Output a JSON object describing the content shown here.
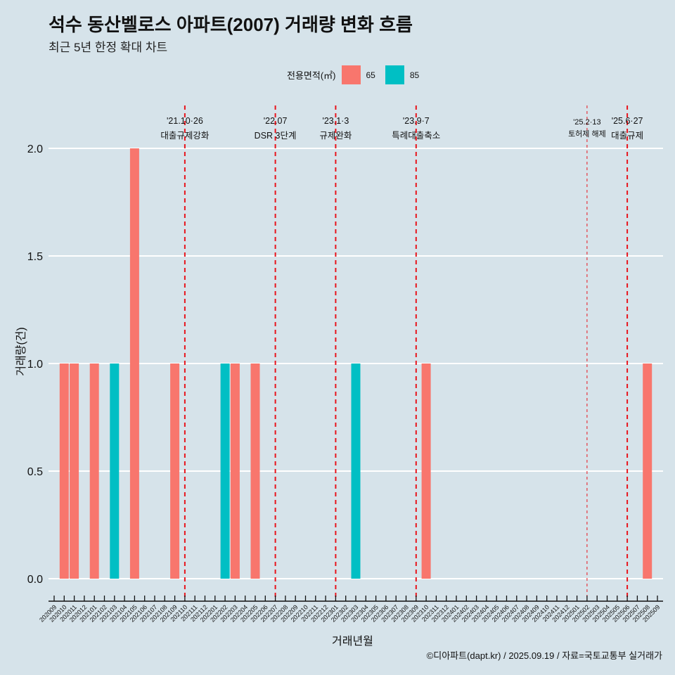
{
  "header": {
    "title": "석수 동산벨로스 아파트(2007) 거래량 변화 흐름",
    "subtitle": "최근 5년 한정 확대 차트"
  },
  "legend": {
    "title": "전용면적(㎡)",
    "items": [
      {
        "label": "65",
        "color": "#f8766d"
      },
      {
        "label": "85",
        "color": "#00bfc4"
      }
    ]
  },
  "caption": "©디아파트(dapt.kr) / 2025.09.19 / 자료=국토교통부 실거래가",
  "chart_data": {
    "type": "bar",
    "title": "석수 동산벨로스 아파트(2007) 거래량 변화 흐름",
    "subtitle": "최근 5년 한정 확대 차트",
    "xlabel": "거래년월",
    "ylabel": "거래량(건)",
    "ylim": [
      0,
      2
    ],
    "yticks": [
      "0.0",
      "0.5",
      "1.0",
      "1.5",
      "2.0"
    ],
    "ytick_values": [
      0,
      0.5,
      1.0,
      1.5,
      2.0
    ],
    "grid": true,
    "legend_position": "top",
    "categories": [
      "202009",
      "202010",
      "202011",
      "202012",
      "202101",
      "202102",
      "202103",
      "202104",
      "202105",
      "202106",
      "202107",
      "202108",
      "202109",
      "202110",
      "202111",
      "202112",
      "202201",
      "202202",
      "202203",
      "202204",
      "202205",
      "202206",
      "202207",
      "202208",
      "202209",
      "202210",
      "202211",
      "202212",
      "202301",
      "202302",
      "202303",
      "202304",
      "202305",
      "202306",
      "202307",
      "202308",
      "202309",
      "202310",
      "202311",
      "202312",
      "202401",
      "202402",
      "202403",
      "202404",
      "202405",
      "202406",
      "202407",
      "202408",
      "202409",
      "202410",
      "202411",
      "202412",
      "202501",
      "202502",
      "202503",
      "202504",
      "202505",
      "202506",
      "202507",
      "202508",
      "202509"
    ],
    "series": [
      {
        "name": "65",
        "color": "#f8766d",
        "points": [
          {
            "x": "202010",
            "y": 1
          },
          {
            "x": "202011",
            "y": 1
          },
          {
            "x": "202101",
            "y": 1
          },
          {
            "x": "202105",
            "y": 2
          },
          {
            "x": "202109",
            "y": 1
          },
          {
            "x": "202203",
            "y": 1
          },
          {
            "x": "202205",
            "y": 1
          },
          {
            "x": "202310",
            "y": 1
          },
          {
            "x": "202508",
            "y": 1
          }
        ]
      },
      {
        "name": "85",
        "color": "#00bfc4",
        "points": [
          {
            "x": "202103",
            "y": 1
          },
          {
            "x": "202202",
            "y": 1
          },
          {
            "x": "202303",
            "y": 1
          }
        ]
      }
    ],
    "annotations": [
      {
        "x": "202110",
        "date": "'21.10·26",
        "label": "대출규제강화",
        "style": "thick"
      },
      {
        "x": "202207",
        "date": "'22.07",
        "label": "DSR 3단계",
        "style": "thick"
      },
      {
        "x": "202301",
        "date": "'23.1·3",
        "label": "규제완화",
        "style": "thick"
      },
      {
        "x": "202309",
        "date": "'23.9·7",
        "label": "특례대출축소",
        "style": "thick"
      },
      {
        "x": "202502",
        "date": "'25.2·13",
        "label": "토허제 해제",
        "style": "thin"
      },
      {
        "x": "202506",
        "date": "'25.6·27",
        "label": "대출규제",
        "style": "thick"
      }
    ],
    "line_color": "#e8141c"
  }
}
